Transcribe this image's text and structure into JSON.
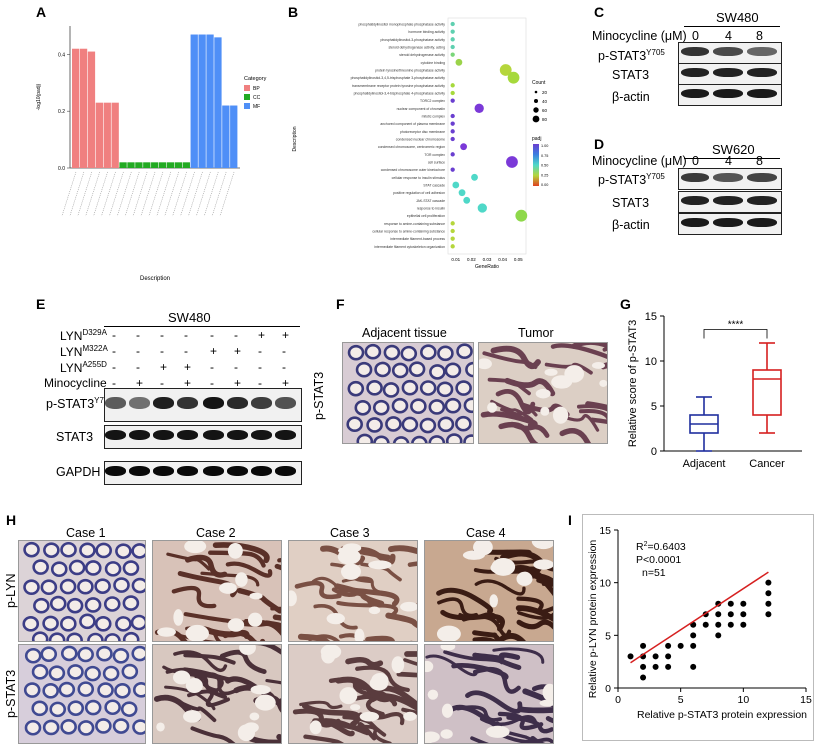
{
  "panels": {
    "A": "A",
    "B": "B",
    "C": "C",
    "D": "D",
    "E": "E",
    "F": "F",
    "G": "G",
    "H": "H",
    "I": "I"
  },
  "panelA": {
    "ylabel": "-log10(padj)",
    "xlabel": "Description",
    "legend_title": "Category",
    "legend": [
      {
        "name": "BP",
        "color": "#f08080"
      },
      {
        "name": "CC",
        "color": "#22aa22"
      },
      {
        "name": "MF",
        "color": "#4f8ff7"
      }
    ],
    "yticks": [
      "0.0",
      "0.2",
      "0.4"
    ],
    "bars": [
      {
        "cat": "BP",
        "value": 0.42
      },
      {
        "cat": "BP",
        "value": 0.42
      },
      {
        "cat": "BP",
        "value": 0.41
      },
      {
        "cat": "BP",
        "value": 0.23
      },
      {
        "cat": "BP",
        "value": 0.23
      },
      {
        "cat": "BP",
        "value": 0.23
      },
      {
        "cat": "CC",
        "value": 0.02
      },
      {
        "cat": "CC",
        "value": 0.02
      },
      {
        "cat": "CC",
        "value": 0.02
      },
      {
        "cat": "CC",
        "value": 0.02
      },
      {
        "cat": "CC",
        "value": 0.02
      },
      {
        "cat": "CC",
        "value": 0.02
      },
      {
        "cat": "CC",
        "value": 0.02
      },
      {
        "cat": "CC",
        "value": 0.02
      },
      {
        "cat": "CC",
        "value": 0.02
      },
      {
        "cat": "MF",
        "value": 0.47
      },
      {
        "cat": "MF",
        "value": 0.47
      },
      {
        "cat": "MF",
        "value": 0.47
      },
      {
        "cat": "MF",
        "value": 0.46
      },
      {
        "cat": "MF",
        "value": 0.22
      },
      {
        "cat": "MF",
        "value": 0.22
      }
    ]
  },
  "panelB": {
    "xlabel": "GeneRatio",
    "ylabel": "Description",
    "xticks": [
      "0.01",
      "0.02",
      "0.03",
      "0.04",
      "0.05"
    ],
    "count_title": "Count",
    "count_legend": [
      "20",
      "40",
      "60",
      "80"
    ],
    "padj_title": "padj",
    "padj_ticks": [
      "1.00",
      "0.75",
      "0.50",
      "0.25",
      "0.00"
    ],
    "terms": [
      {
        "label": "phosphatidylinositol monophosphate phosphatase activity",
        "x": 0.008,
        "size": 1,
        "color": "#5fd0b0"
      },
      {
        "label": "hormone binding activity",
        "x": 0.008,
        "size": 1,
        "color": "#5fd0b0"
      },
      {
        "label": "phosphatidylinositol-3-phosphatase activity",
        "x": 0.008,
        "size": 1,
        "color": "#5fd0b0"
      },
      {
        "label": "steroid dehydrogenase activity, acting",
        "x": 0.008,
        "size": 1,
        "color": "#5fd0b0"
      },
      {
        "label": "steroid dehydrogenase activity",
        "x": 0.008,
        "size": 1,
        "color": "#7ad67a"
      },
      {
        "label": "cytokine binding",
        "x": 0.012,
        "size": 2,
        "color": "#9bd34a"
      },
      {
        "label": "protein tyrosine/threonine phosphatase activity",
        "x": 0.042,
        "size": 4,
        "color": "#b5d63c"
      },
      {
        "label": "phosphatidylinositol-3,4,5-trisphosphate 3-phosphatase activity",
        "x": 0.047,
        "size": 4,
        "color": "#a6d93c"
      },
      {
        "label": "transmembrane receptor protein tyrosine phosphatase activity",
        "x": 0.008,
        "size": 1,
        "color": "#a6d93c"
      },
      {
        "label": "phosphatidylinositol-3,4-bisphosphate 4-phosphatase activity",
        "x": 0.008,
        "size": 1,
        "color": "#a6d93c"
      },
      {
        "label": "TORC2 complex",
        "x": 0.008,
        "size": 1,
        "color": "#6a3fd0"
      },
      {
        "label": "nuclear component of chromatin",
        "x": 0.025,
        "size": 3,
        "color": "#7b39d8"
      },
      {
        "label": "mitotic complex",
        "x": 0.008,
        "size": 1,
        "color": "#6a3fd0"
      },
      {
        "label": "anchored component of plasma membrane",
        "x": 0.008,
        "size": 1,
        "color": "#6a3fd0"
      },
      {
        "label": "photoreceptor disc membrane",
        "x": 0.008,
        "size": 1,
        "color": "#6a3fd0"
      },
      {
        "label": "condensed nuclear chromosome",
        "x": 0.008,
        "size": 1,
        "color": "#6a3fd0"
      },
      {
        "label": "condensed chromosome, centromeric region",
        "x": 0.015,
        "size": 2,
        "color": "#7b39d8"
      },
      {
        "label": "TOR complex",
        "x": 0.008,
        "size": 1,
        "color": "#6a3fd0"
      },
      {
        "label": "cell surface",
        "x": 0.046,
        "size": 4,
        "color": "#7b39d8"
      },
      {
        "label": "condensed chromosome outer kinetochore",
        "x": 0.008,
        "size": 1,
        "color": "#6a3fd0"
      },
      {
        "label": "cellular response to insulin stimulus",
        "x": 0.022,
        "size": 2,
        "color": "#4fd8c8"
      },
      {
        "label": "STAT cascade",
        "x": 0.01,
        "size": 2,
        "color": "#4fd8c8"
      },
      {
        "label": "positive regulation of cell adhesion",
        "x": 0.014,
        "size": 2,
        "color": "#4fd8c8"
      },
      {
        "label": "JAK-STAT cascade",
        "x": 0.017,
        "size": 2,
        "color": "#4fd8c8"
      },
      {
        "label": "response to insulin",
        "x": 0.027,
        "size": 3,
        "color": "#4fd8c8"
      },
      {
        "label": "epithelial cell proliferation",
        "x": 0.052,
        "size": 4,
        "color": "#8ed84a"
      },
      {
        "label": "response to amine-containing substance",
        "x": 0.008,
        "size": 1,
        "color": "#b5d63c"
      },
      {
        "label": "cellular response to amine-containing substance",
        "x": 0.008,
        "size": 1,
        "color": "#b5d63c"
      },
      {
        "label": "intermediate filament-based process",
        "x": 0.008,
        "size": 1,
        "color": "#b5d63c"
      },
      {
        "label": "intermediate filament cytoskeleton organization",
        "x": 0.008,
        "size": 1,
        "color": "#b5d63c"
      }
    ]
  },
  "panelC": {
    "cell": "SW480",
    "treatment": "Minocycline (μM)",
    "doses": [
      "0",
      "4",
      "8"
    ],
    "rows": [
      {
        "base": "p-STAT3",
        "sup": "Y705"
      },
      {
        "base": "STAT3",
        "sup": ""
      },
      {
        "base": "β-actin",
        "sup": ""
      }
    ]
  },
  "panelD": {
    "cell": "SW620",
    "treatment": "Minocycline (μM)",
    "doses": [
      "0",
      "4",
      "8"
    ],
    "rows": [
      {
        "base": "p-STAT3",
        "sup": "Y705"
      },
      {
        "base": "STAT3",
        "sup": ""
      },
      {
        "base": "β-actin",
        "sup": ""
      }
    ]
  },
  "panelE": {
    "cell": "SW480",
    "conditions": [
      {
        "base": "LYN",
        "sup": "D329A",
        "signs": [
          "-",
          "-",
          "-",
          "-",
          "-",
          "-",
          "+",
          "+"
        ]
      },
      {
        "base": "LYN",
        "sup": "M322A",
        "signs": [
          "-",
          "-",
          "-",
          "-",
          "+",
          "+",
          "-",
          "-"
        ]
      },
      {
        "base": "LYN",
        "sup": "A255D",
        "signs": [
          "-",
          "-",
          "+",
          "+",
          "-",
          "-",
          "-",
          "-"
        ]
      },
      {
        "base": "Minocycline",
        "sup": "",
        "signs": [
          "-",
          "+",
          "-",
          "+",
          "-",
          "+",
          "-",
          "+"
        ]
      }
    ],
    "rows": [
      {
        "base": "p-STAT3",
        "sup": "Y705"
      },
      {
        "base": "STAT3",
        "sup": ""
      },
      {
        "base": "GAPDH",
        "sup": ""
      }
    ]
  },
  "panelF": {
    "left_title": "Adjacent tissue",
    "right_title": "Tumor",
    "row_label": "p-STAT3"
  },
  "panelG": {
    "ylabel": "Relative score of p-STAT3",
    "yticks": [
      "0",
      "5",
      "10",
      "15"
    ],
    "significance": "****",
    "groups": [
      {
        "name": "Adjacent",
        "min": 0,
        "q1": 2,
        "median": 3,
        "q3": 4,
        "max": 6,
        "color": "#1f2f9e"
      },
      {
        "name": "Cancer",
        "min": 2,
        "q1": 4,
        "median": 8,
        "q3": 9,
        "max": 12,
        "color": "#d62020"
      }
    ]
  },
  "panelH": {
    "cases": [
      "Case 1",
      "Case 2",
      "Case 3",
      "Case 4"
    ],
    "rows": [
      "p-LYN",
      "p-STAT3"
    ]
  },
  "panelI": {
    "xlabel": "Relative p-STAT3 protein expression",
    "ylabel": "Relative p-LYN protein expression",
    "r2_base": "R",
    "r2_sup": "2",
    "r2_value": "=0.6403",
    "p_value": "P<0.0001",
    "n": "n=51",
    "xticks": [
      "0",
      "5",
      "10",
      "15"
    ],
    "yticks": [
      "0",
      "5",
      "10",
      "15"
    ]
  },
  "chart_data": [
    {
      "type": "bar",
      "ylabel": "-log10(padj)",
      "xlabel": "Description",
      "ylim": [
        0,
        0.5
      ],
      "series": [
        {
          "name": "BP",
          "values": [
            0.42,
            0.42,
            0.41,
            0.23,
            0.23,
            0.23
          ]
        },
        {
          "name": "CC",
          "values": [
            0.02,
            0.02,
            0.02,
            0.02,
            0.02,
            0.02,
            0.02,
            0.02,
            0.02
          ]
        },
        {
          "name": "MF",
          "values": [
            0.47,
            0.47,
            0.47,
            0.46,
            0.22,
            0.22
          ]
        }
      ],
      "legend": "right"
    },
    {
      "type": "scatter",
      "xlabel": "GeneRatio",
      "ylabel": "Description",
      "xlim": [
        0.005,
        0.055
      ],
      "note_legend": [
        "Count",
        "padj"
      ]
    },
    {
      "type": "bar",
      "ylabel": "Relative score of p-STAT3",
      "categories": [
        "Adjacent",
        "Cancer"
      ],
      "ylim": [
        0,
        15
      ],
      "boxes": [
        {
          "name": "Adjacent",
          "min": 0,
          "q1": 2,
          "median": 3,
          "q3": 4,
          "max": 6
        },
        {
          "name": "Cancer",
          "min": 2,
          "q1": 4,
          "median": 8,
          "q3": 9,
          "max": 12
        }
      ]
    },
    {
      "type": "scatter",
      "xlabel": "Relative p-STAT3 protein expression",
      "ylabel": "Relative p-LYN protein expression",
      "xlim": [
        0,
        15
      ],
      "ylim": [
        0,
        15
      ],
      "points": [
        [
          1,
          3
        ],
        [
          2,
          1
        ],
        [
          2,
          2
        ],
        [
          2,
          3
        ],
        [
          2,
          4
        ],
        [
          3,
          2
        ],
        [
          3,
          3
        ],
        [
          4,
          2
        ],
        [
          4,
          3
        ],
        [
          4,
          4
        ],
        [
          5,
          4
        ],
        [
          6,
          2
        ],
        [
          6,
          4
        ],
        [
          6,
          5
        ],
        [
          6,
          6
        ],
        [
          7,
          6
        ],
        [
          7,
          7
        ],
        [
          8,
          5
        ],
        [
          8,
          6
        ],
        [
          8,
          7
        ],
        [
          8,
          8
        ],
        [
          9,
          6
        ],
        [
          9,
          7
        ],
        [
          9,
          8
        ],
        [
          10,
          6
        ],
        [
          10,
          7
        ],
        [
          10,
          8
        ],
        [
          12,
          7
        ],
        [
          12,
          8
        ],
        [
          12,
          9
        ],
        [
          12,
          10
        ]
      ],
      "fit": {
        "x": [
          1,
          12
        ],
        "y": [
          2.4,
          11
        ]
      }
    }
  ]
}
